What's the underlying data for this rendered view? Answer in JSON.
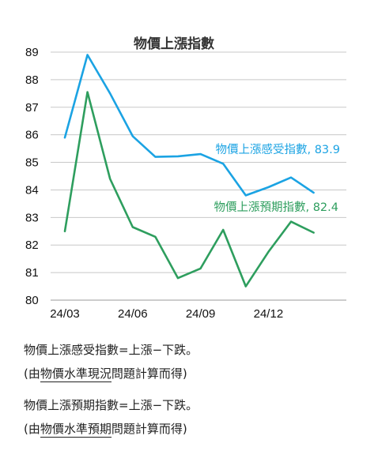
{
  "chart_data": {
    "type": "line",
    "title": "物價上漲指數",
    "ylim": [
      80,
      89
    ],
    "yticks": [
      "80",
      "81",
      "82",
      "83",
      "84",
      "85",
      "86",
      "87",
      "88",
      "89"
    ],
    "x": [
      "24/03",
      "24/04",
      "24/05",
      "24/06",
      "24/07",
      "24/08",
      "24/09",
      "24/10",
      "24/11",
      "24/12",
      "25/01",
      "25/02"
    ],
    "xtick_labels": [
      "24/03",
      "24/06",
      "24/09",
      "24/12"
    ],
    "grid": true,
    "series": [
      {
        "name": "物價上漲感受指數",
        "label": "物價上漲感受指數, 83.9",
        "color": "#1ba3e3",
        "values": [
          85.9,
          88.9,
          87.5,
          85.95,
          85.2,
          85.22,
          85.3,
          84.95,
          83.8,
          84.1,
          84.45,
          83.9
        ]
      },
      {
        "name": "物價上漲預期指數",
        "label": "物價上漲預期指數, 82.4",
        "color": "#2e9e5e",
        "values": [
          82.5,
          87.55,
          84.4,
          82.65,
          82.3,
          80.8,
          81.15,
          82.55,
          80.5,
          81.75,
          82.85,
          82.45
        ]
      }
    ]
  },
  "notes": {
    "line1": "物價上漲感受指數=上漲−下跌。",
    "line2_prefix": "(由",
    "line2_underlined": "物價水準現況",
    "line2_suffix": "問題計算而得)",
    "line3": "物價上漲預期指數=上漲−下跌。",
    "line4_prefix": "(由",
    "line4_underlined": "物價水準預期",
    "line4_suffix": "問題計算而得)"
  }
}
